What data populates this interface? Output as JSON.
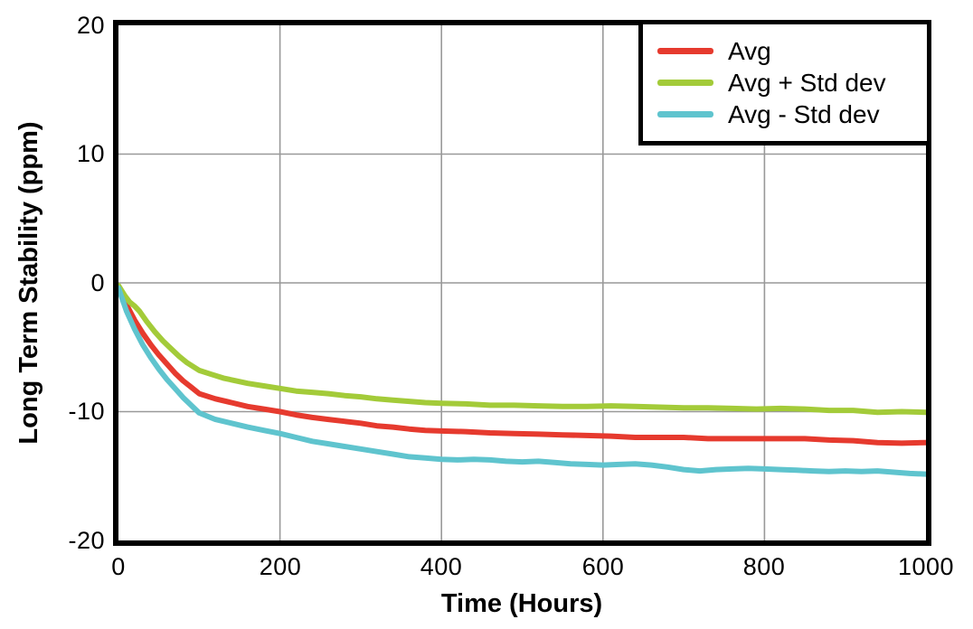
{
  "chart_data": {
    "type": "line",
    "title": "",
    "xlabel": "Time (Hours)",
    "ylabel": "Long Term Stability (ppm)",
    "xlim": [
      0,
      1000
    ],
    "ylim": [
      -20,
      20
    ],
    "xticks": [
      0,
      200,
      400,
      600,
      800,
      1000
    ],
    "yticks": [
      20,
      10,
      0,
      -10,
      -20
    ],
    "grid": true,
    "grid_color": "#999999",
    "frame_color": "#000000",
    "line_width": 6,
    "legend_position": "top-right",
    "series": [
      {
        "name": "Avg",
        "color": "#E63A2E",
        "points": [
          [
            0,
            -0.3
          ],
          [
            10,
            -1.7
          ],
          [
            20,
            -2.9
          ],
          [
            30,
            -3.9
          ],
          [
            40,
            -4.8
          ],
          [
            50,
            -5.6
          ],
          [
            60,
            -6.3
          ],
          [
            70,
            -7.0
          ],
          [
            80,
            -7.6
          ],
          [
            90,
            -8.1
          ],
          [
            100,
            -8.6
          ],
          [
            120,
            -9.0
          ],
          [
            140,
            -9.3
          ],
          [
            160,
            -9.6
          ],
          [
            180,
            -9.8
          ],
          [
            200,
            -10.0
          ],
          [
            220,
            -10.25
          ],
          [
            240,
            -10.45
          ],
          [
            260,
            -10.6
          ],
          [
            280,
            -10.75
          ],
          [
            300,
            -10.9
          ],
          [
            320,
            -11.1
          ],
          [
            340,
            -11.2
          ],
          [
            360,
            -11.35
          ],
          [
            380,
            -11.45
          ],
          [
            400,
            -11.5
          ],
          [
            430,
            -11.55
          ],
          [
            460,
            -11.65
          ],
          [
            490,
            -11.7
          ],
          [
            520,
            -11.75
          ],
          [
            550,
            -11.8
          ],
          [
            580,
            -11.85
          ],
          [
            610,
            -11.9
          ],
          [
            640,
            -12.0
          ],
          [
            670,
            -12.0
          ],
          [
            700,
            -12.0
          ],
          [
            730,
            -12.1
          ],
          [
            760,
            -12.1
          ],
          [
            790,
            -12.1
          ],
          [
            820,
            -12.1
          ],
          [
            850,
            -12.1
          ],
          [
            880,
            -12.2
          ],
          [
            910,
            -12.25
          ],
          [
            940,
            -12.4
          ],
          [
            970,
            -12.45
          ],
          [
            1000,
            -12.4
          ]
        ]
      },
      {
        "name": "Avg + Std dev",
        "color": "#A3CB39",
        "points": [
          [
            0,
            -0.2
          ],
          [
            8,
            -1.0
          ],
          [
            14,
            -1.5
          ],
          [
            20,
            -1.8
          ],
          [
            26,
            -2.2
          ],
          [
            35,
            -3.0
          ],
          [
            45,
            -3.8
          ],
          [
            55,
            -4.5
          ],
          [
            65,
            -5.1
          ],
          [
            75,
            -5.7
          ],
          [
            85,
            -6.2
          ],
          [
            100,
            -6.8
          ],
          [
            115,
            -7.1
          ],
          [
            130,
            -7.4
          ],
          [
            145,
            -7.6
          ],
          [
            160,
            -7.8
          ],
          [
            180,
            -8.0
          ],
          [
            200,
            -8.2
          ],
          [
            220,
            -8.4
          ],
          [
            240,
            -8.5
          ],
          [
            260,
            -8.6
          ],
          [
            280,
            -8.75
          ],
          [
            300,
            -8.85
          ],
          [
            320,
            -9.0
          ],
          [
            340,
            -9.1
          ],
          [
            360,
            -9.2
          ],
          [
            380,
            -9.3
          ],
          [
            400,
            -9.35
          ],
          [
            430,
            -9.4
          ],
          [
            460,
            -9.5
          ],
          [
            490,
            -9.5
          ],
          [
            520,
            -9.55
          ],
          [
            550,
            -9.6
          ],
          [
            580,
            -9.6
          ],
          [
            610,
            -9.55
          ],
          [
            640,
            -9.6
          ],
          [
            670,
            -9.65
          ],
          [
            700,
            -9.7
          ],
          [
            730,
            -9.7
          ],
          [
            760,
            -9.75
          ],
          [
            790,
            -9.8
          ],
          [
            820,
            -9.75
          ],
          [
            850,
            -9.8
          ],
          [
            880,
            -9.9
          ],
          [
            910,
            -9.9
          ],
          [
            940,
            -10.05
          ],
          [
            970,
            -10.0
          ],
          [
            1000,
            -10.05
          ]
        ]
      },
      {
        "name": "Avg - Std dev",
        "color": "#5FC4CE",
        "points": [
          [
            0,
            -0.4
          ],
          [
            10,
            -2.2
          ],
          [
            20,
            -3.6
          ],
          [
            30,
            -4.8
          ],
          [
            40,
            -5.8
          ],
          [
            50,
            -6.7
          ],
          [
            60,
            -7.5
          ],
          [
            70,
            -8.2
          ],
          [
            80,
            -8.9
          ],
          [
            90,
            -9.5
          ],
          [
            100,
            -10.1
          ],
          [
            120,
            -10.6
          ],
          [
            140,
            -10.9
          ],
          [
            160,
            -11.2
          ],
          [
            180,
            -11.45
          ],
          [
            200,
            -11.7
          ],
          [
            220,
            -12.0
          ],
          [
            240,
            -12.3
          ],
          [
            260,
            -12.5
          ],
          [
            280,
            -12.7
          ],
          [
            300,
            -12.9
          ],
          [
            320,
            -13.1
          ],
          [
            340,
            -13.3
          ],
          [
            360,
            -13.5
          ],
          [
            380,
            -13.6
          ],
          [
            400,
            -13.7
          ],
          [
            420,
            -13.75
          ],
          [
            440,
            -13.7
          ],
          [
            460,
            -13.75
          ],
          [
            480,
            -13.85
          ],
          [
            500,
            -13.9
          ],
          [
            520,
            -13.85
          ],
          [
            540,
            -13.95
          ],
          [
            560,
            -14.05
          ],
          [
            580,
            -14.1
          ],
          [
            600,
            -14.15
          ],
          [
            620,
            -14.1
          ],
          [
            640,
            -14.05
          ],
          [
            660,
            -14.15
          ],
          [
            680,
            -14.3
          ],
          [
            700,
            -14.5
          ],
          [
            720,
            -14.6
          ],
          [
            740,
            -14.5
          ],
          [
            760,
            -14.45
          ],
          [
            780,
            -14.4
          ],
          [
            800,
            -14.45
          ],
          [
            820,
            -14.5
          ],
          [
            840,
            -14.55
          ],
          [
            860,
            -14.6
          ],
          [
            880,
            -14.65
          ],
          [
            900,
            -14.6
          ],
          [
            920,
            -14.65
          ],
          [
            940,
            -14.6
          ],
          [
            960,
            -14.7
          ],
          [
            980,
            -14.8
          ],
          [
            1000,
            -14.85
          ]
        ]
      }
    ]
  }
}
